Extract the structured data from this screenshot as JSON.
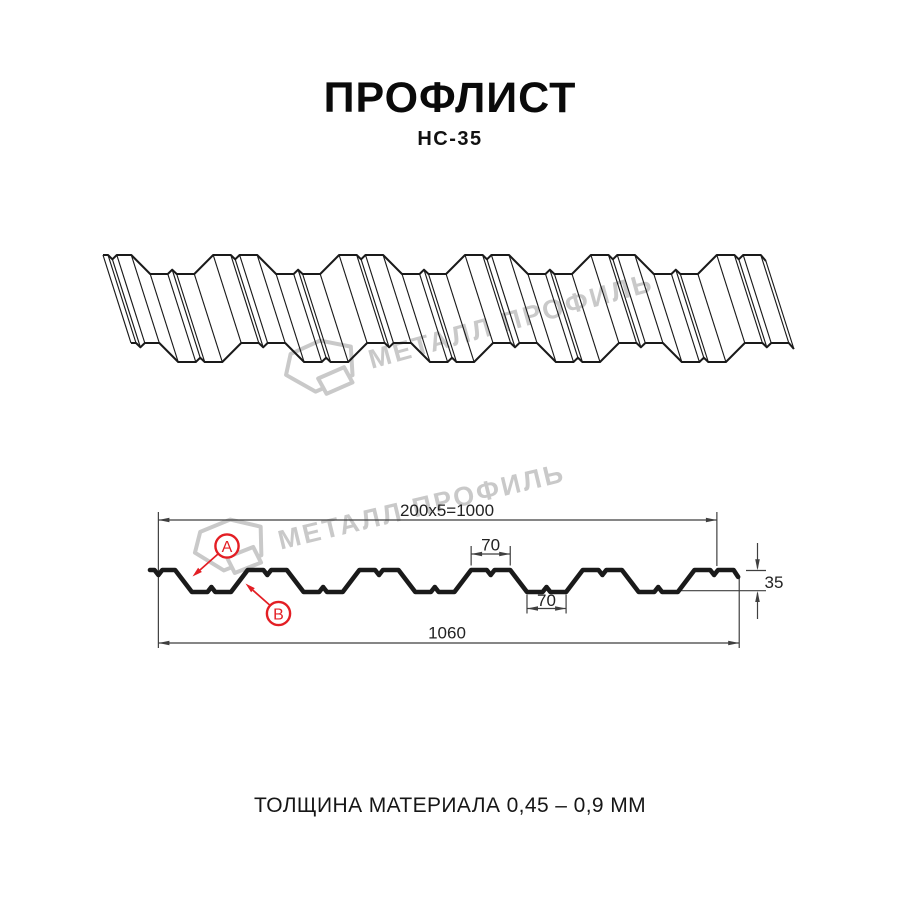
{
  "header": {
    "title": "ПРОФЛИСТ",
    "subtitle": "НС-35"
  },
  "watermark": {
    "text": "МЕТАЛЛ ПРОФИЛЬ",
    "color": "#c9c9c9"
  },
  "dimensions": {
    "module_width": "200x5=1000",
    "rib_top_width": "70",
    "rib_bottom_width": "70",
    "profile_height": "35",
    "overall_width": "1060"
  },
  "annotations": {
    "side_a_label": "A",
    "side_b_label": "B",
    "accent_color": "#e31e24"
  },
  "footer": {
    "material_thickness": "ТОЛЩИНА МАТЕРИАЛА 0,45 – 0,9 ММ"
  },
  "drawing_colors": {
    "ink": "#1a1a1a",
    "dimension": "#3f3f3f"
  }
}
